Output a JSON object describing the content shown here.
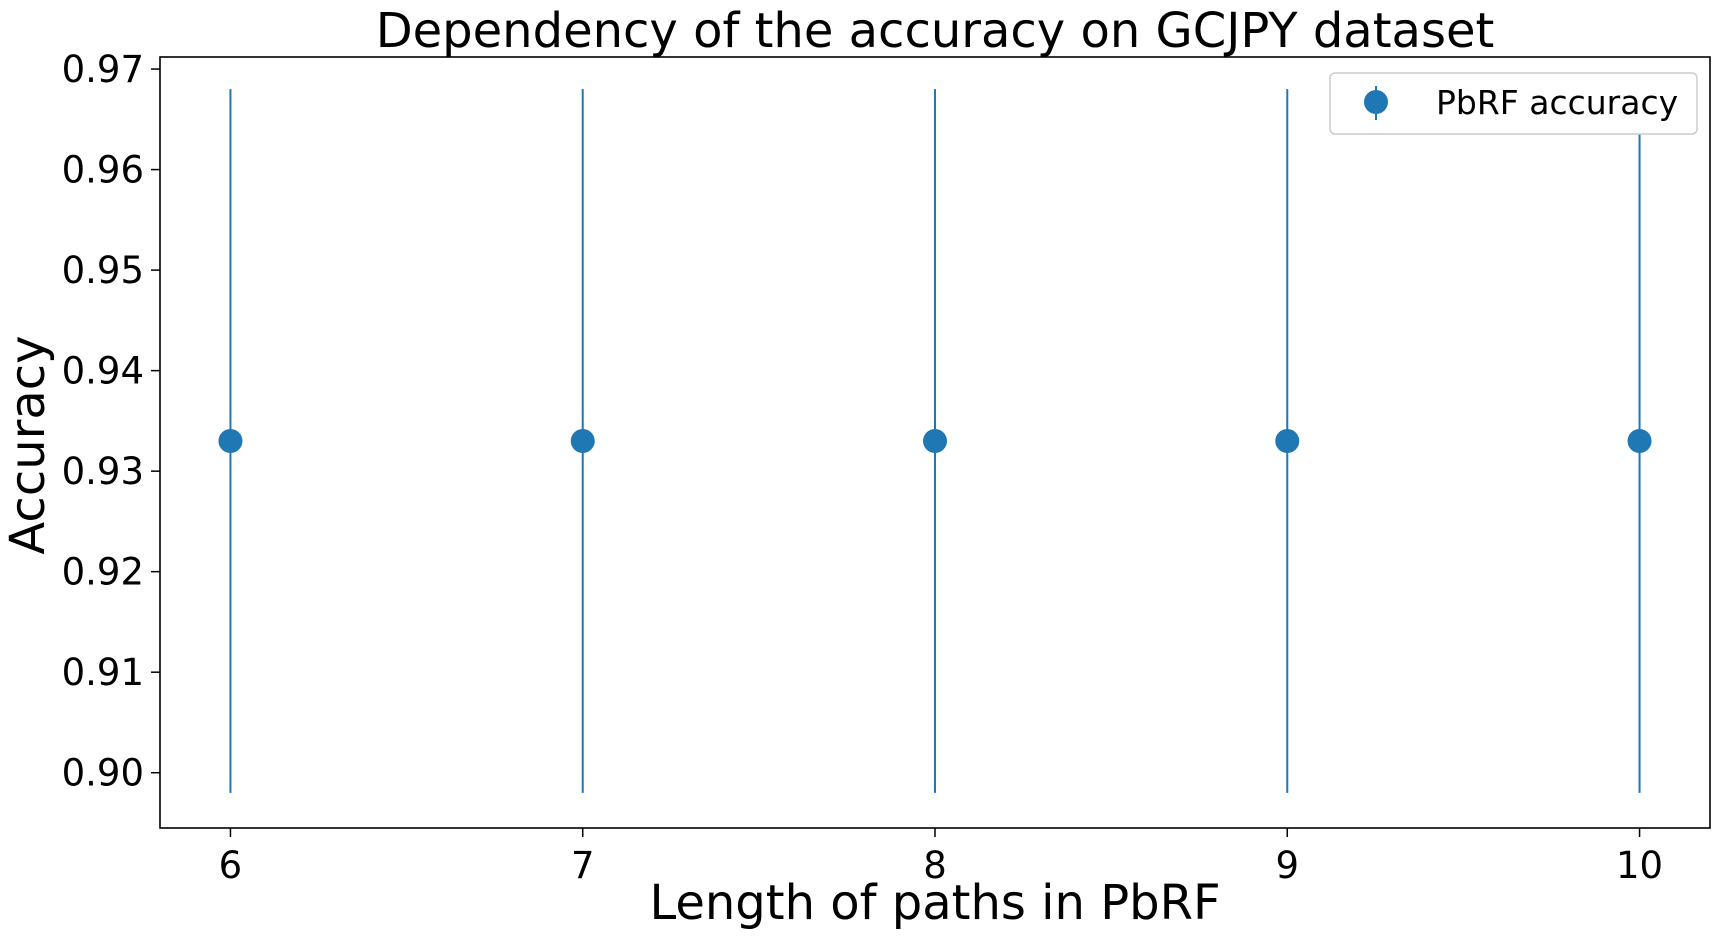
{
  "chart_data": {
    "type": "scatter",
    "title": "Dependency of the accuracy on GCJPY dataset",
    "xlabel": "Length of paths in PbRF",
    "ylabel": "Accuracy",
    "x_ticks": [
      "6",
      "7",
      "8",
      "9",
      "10"
    ],
    "y_ticks": [
      "0.90",
      "0.91",
      "0.92",
      "0.93",
      "0.94",
      "0.95",
      "0.96",
      "0.97"
    ],
    "xlim": [
      5.8,
      10.2
    ],
    "ylim": [
      0.8945,
      0.9712
    ],
    "grid": false,
    "legend_position": "top-right",
    "series": [
      {
        "name": "PbRF accuracy",
        "color": "#1f77b4",
        "marker": "circle",
        "x": [
          6,
          7,
          8,
          9,
          10
        ],
        "y": [
          0.933,
          0.933,
          0.933,
          0.933,
          0.933
        ],
        "error_low": [
          0.898,
          0.898,
          0.898,
          0.898,
          0.898
        ],
        "error_high": [
          0.968,
          0.968,
          0.968,
          0.968,
          0.968
        ]
      }
    ]
  }
}
